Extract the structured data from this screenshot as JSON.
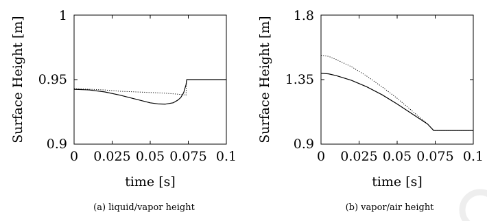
{
  "chart_data": [
    {
      "type": "line",
      "caption": "(a) liquid/vapor height",
      "xlabel": "time [s]",
      "ylabel": "Surface Height [m]",
      "xlim": [
        0,
        0.1
      ],
      "ylim": [
        0.9,
        1
      ],
      "xticks": [
        "0",
        "0.025",
        "0.05",
        "0.075",
        "0.1"
      ],
      "yticks": [
        "0.9",
        "0.95",
        "1"
      ],
      "series": [
        {
          "style": "solid",
          "color": "#000000",
          "x": [
            0,
            0.01,
            0.02,
            0.03,
            0.04,
            0.05,
            0.055,
            0.06,
            0.065,
            0.068,
            0.07,
            0.072,
            0.0735,
            0.074,
            0.075,
            0.08,
            0.09,
            0.1
          ],
          "y": [
            0.9425,
            0.942,
            0.9405,
            0.938,
            0.935,
            0.932,
            0.9312,
            0.931,
            0.932,
            0.934,
            0.936,
            0.94,
            0.946,
            0.95,
            0.95,
            0.95,
            0.95,
            0.95
          ]
        },
        {
          "style": "dotted",
          "color": "#000000",
          "x": [
            0,
            0.01,
            0.02,
            0.03,
            0.04,
            0.05,
            0.06,
            0.07,
            0.0735,
            0.074,
            0.075,
            0.08,
            0.09,
            0.1
          ],
          "y": [
            0.943,
            0.9425,
            0.942,
            0.941,
            0.9405,
            0.94,
            0.9395,
            0.9385,
            0.938,
            0.95,
            0.95,
            0.95,
            0.95,
            0.95
          ]
        }
      ]
    },
    {
      "type": "line",
      "caption": "(b) vapor/air height",
      "xlabel": "time [s]",
      "ylabel": "Surface Height [m]",
      "xlim": [
        0,
        0.1
      ],
      "ylim": [
        0.9,
        1.8
      ],
      "xticks": [
        "0",
        "0.025",
        "0.05",
        "0.075",
        "0.1"
      ],
      "yticks": [
        "0.9",
        "1.35",
        "1.8"
      ],
      "series": [
        {
          "style": "solid",
          "color": "#000000",
          "x": [
            0,
            0.005,
            0.01,
            0.02,
            0.03,
            0.04,
            0.05,
            0.06,
            0.07,
            0.074,
            0.08,
            0.09,
            0.1
          ],
          "y": [
            1.395,
            1.39,
            1.378,
            1.345,
            1.3,
            1.245,
            1.18,
            1.11,
            1.04,
            0.995,
            0.995,
            0.995,
            0.995
          ]
        },
        {
          "style": "dotted",
          "color": "#000000",
          "x": [
            0,
            0.005,
            0.01,
            0.02,
            0.03,
            0.04,
            0.05,
            0.06,
            0.07,
            0.074,
            0.08,
            0.09,
            0.1
          ],
          "y": [
            1.52,
            1.512,
            1.49,
            1.44,
            1.375,
            1.3,
            1.22,
            1.13,
            1.04,
            0.995,
            0.995,
            0.995,
            0.995
          ]
        }
      ]
    }
  ]
}
